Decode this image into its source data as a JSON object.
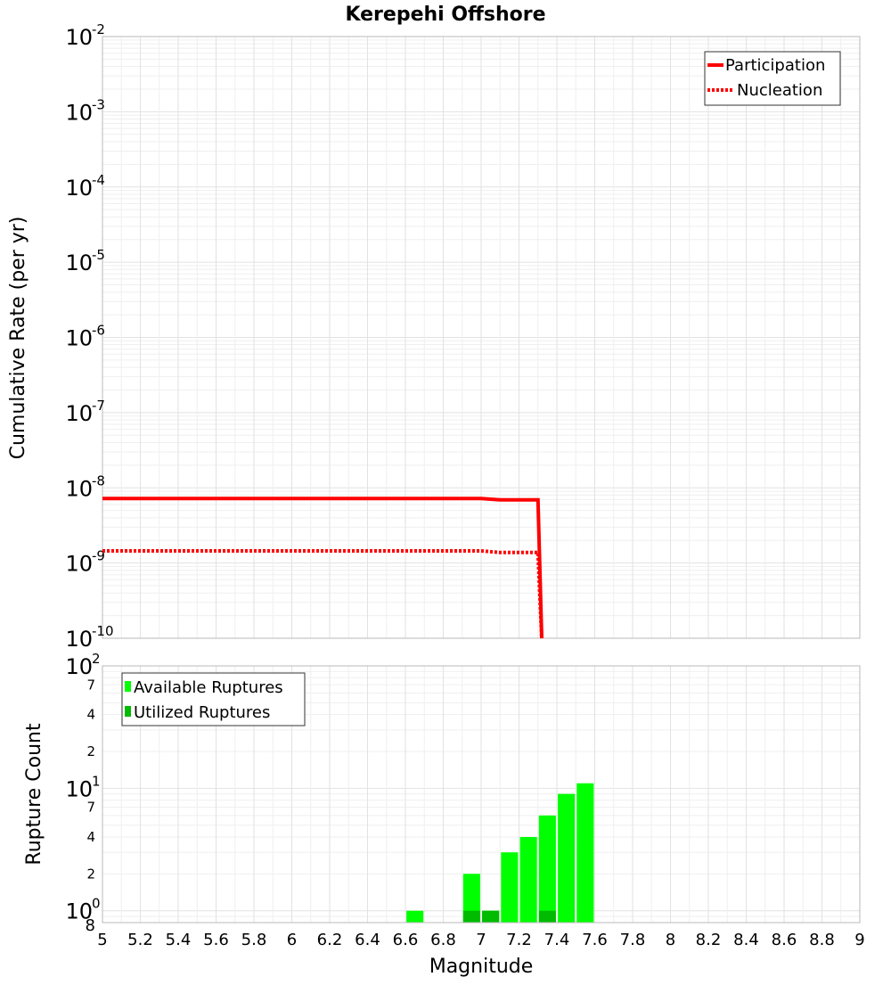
{
  "chart_data": [
    {
      "type": "line",
      "title": "Kerepehi Offshore",
      "xlabel": "Magnitude",
      "ylabel": "Cumulative Rate (per yr)",
      "xlim": [
        5,
        9
      ],
      "ylim": [
        1e-10,
        0.01
      ],
      "y_scale": "log",
      "grid": true,
      "legend_position": "top-right",
      "y_ticks": [
        {
          "base": "10",
          "exp": "-10",
          "value": 1e-10
        },
        {
          "base": "10",
          "exp": "-9",
          "value": 1e-09
        },
        {
          "base": "10",
          "exp": "-8",
          "value": 1e-08
        },
        {
          "base": "10",
          "exp": "-7",
          "value": 1e-07
        },
        {
          "base": "10",
          "exp": "-6",
          "value": 1e-06
        },
        {
          "base": "10",
          "exp": "-5",
          "value": 1e-05
        },
        {
          "base": "10",
          "exp": "-4",
          "value": 0.0001
        },
        {
          "base": "10",
          "exp": "-3",
          "value": 0.001
        },
        {
          "base": "10",
          "exp": "-2",
          "value": 0.01
        }
      ],
      "series": [
        {
          "name": "Participation",
          "style": "solid",
          "color": "#ff0000",
          "x": [
            5.0,
            6.0,
            7.0,
            7.1,
            7.2,
            7.3,
            7.32
          ],
          "y": [
            7.2e-09,
            7.2e-09,
            7.2e-09,
            6.9e-09,
            6.9e-09,
            6.9e-09,
            1e-10
          ]
        },
        {
          "name": "Nucleation",
          "style": "dotted",
          "color": "#ff0000",
          "x": [
            5.0,
            6.0,
            7.0,
            7.1,
            7.2,
            7.3,
            7.32
          ],
          "y": [
            1.45e-09,
            1.45e-09,
            1.45e-09,
            1.38e-09,
            1.38e-09,
            1.38e-09,
            1e-10
          ]
        }
      ]
    },
    {
      "type": "bar",
      "xlabel": "Magnitude",
      "ylabel": "Rupture Count",
      "xlim": [
        5,
        9
      ],
      "ylim": [
        0.8,
        100
      ],
      "y_scale": "log",
      "grid": true,
      "legend_position": "top-left",
      "bar_width": 0.09,
      "x_ticks": [
        "5",
        "5.2",
        "5.4",
        "5.6",
        "5.8",
        "6",
        "6.2",
        "6.4",
        "6.6",
        "6.8",
        "7",
        "7.2",
        "7.4",
        "7.6",
        "7.8",
        "8",
        "8.2",
        "8.4",
        "8.6",
        "8.8",
        "9"
      ],
      "y_major_ticks": [
        {
          "base": "10",
          "exp": "0",
          "value": 1
        },
        {
          "base": "10",
          "exp": "1",
          "value": 10
        },
        {
          "base": "10",
          "exp": "2",
          "value": 100
        }
      ],
      "y_minor_ticks": [
        {
          "label": "8",
          "value": 0.8
        },
        {
          "label": "2",
          "value": 2
        },
        {
          "label": "4",
          "value": 4
        },
        {
          "label": "7",
          "value": 7
        },
        {
          "label": "2",
          "value": 20
        },
        {
          "label": "4",
          "value": 40
        },
        {
          "label": "7",
          "value": 70
        }
      ],
      "series": [
        {
          "name": "Available Ruptures",
          "color": "#00ff00",
          "x": [
            6.65,
            6.95,
            7.05,
            7.15,
            7.25,
            7.35,
            7.45,
            7.55
          ],
          "values": [
            1,
            2,
            1,
            3,
            4,
            6,
            9,
            11
          ]
        },
        {
          "name": "Utilized Ruptures",
          "color": "#00bb00",
          "x": [
            6.95,
            7.05,
            7.35
          ],
          "values": [
            1,
            1,
            1
          ]
        }
      ]
    }
  ]
}
